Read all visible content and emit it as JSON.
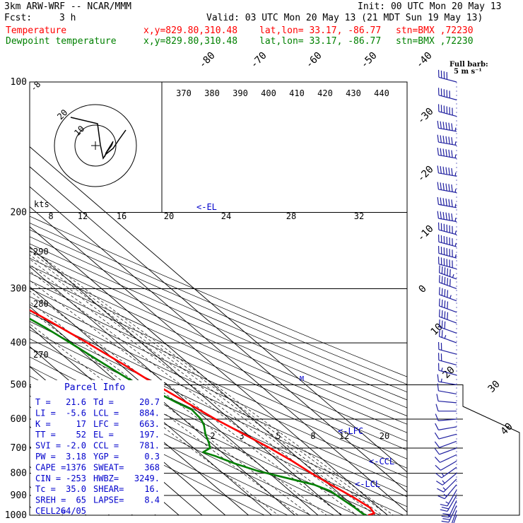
{
  "header": {
    "model": "3km ARW-WRF -- NCAR/MMM",
    "init": "Init: 00 UTC Mon 20 May 13",
    "fcst_label": "Fcst:",
    "fcst_value": "3 h",
    "valid": "Valid: 03 UTC Mon 20 May 13 (21 MDT Sun 19 May 13)",
    "rows": [
      {
        "name": "Temperature",
        "xy": "x,y=829.80,310.48",
        "latlon": "lat,lon= 33.17, -86.77",
        "stn": "stn=BMX ,72230",
        "color": "#ff0000"
      },
      {
        "name": "Dewpoint temperature",
        "xy": "x,y=829.80,310.48",
        "latlon": "lat,lon= 33.17, -86.77",
        "stn": "stn=BMX ,72230",
        "color": "#008000"
      }
    ]
  },
  "barb_legend": {
    "line1": "Full barb:",
    "line2": "5 m s⁻¹"
  },
  "parcel_info": {
    "title": "Parcel Info",
    "rows": [
      [
        "T  =",
        "21.6",
        "Td =",
        "20.7"
      ],
      [
        "LI =",
        "-5.6",
        "LCL =",
        "884."
      ],
      [
        "K  =",
        "17",
        "LFC =",
        "663."
      ],
      [
        "TT =",
        "52",
        "EL =",
        "197."
      ],
      [
        "SVI =",
        "-2.0",
        "CCL =",
        "781."
      ],
      [
        "PW =",
        "3.18",
        "YGP =",
        "0.3"
      ],
      [
        "CAPE =",
        "1376",
        "SWEAT=",
        "368"
      ],
      [
        "CIN =",
        "-253",
        "HWBZ=",
        "3249."
      ],
      [
        "Tc =",
        "35.0",
        "SHEAR=",
        "16."
      ],
      [
        "SREH =",
        "65",
        "LAPSE=",
        "8.4"
      ],
      [
        "CELL =",
        "264/05",
        "",
        ""
      ]
    ]
  },
  "hodograph": {
    "units_label": "kts",
    "ring_labels": [
      "20",
      "10"
    ]
  },
  "chart_data": {
    "type": "line",
    "title": "",
    "xlabel": "",
    "ylabel": "",
    "y_scale": "log pressure (reversed)",
    "ylim": [
      1000,
      100
    ],
    "pressure_ticks": [
      100,
      200,
      300,
      400,
      500,
      600,
      700,
      800,
      900,
      1000
    ],
    "isotherm_labels": [
      -80,
      -70,
      -60,
      -50,
      -40,
      -30,
      -20,
      -10,
      0,
      10,
      20,
      30,
      40
    ],
    "theta_labels": [
      370,
      380,
      390,
      400,
      410,
      420,
      430,
      440
    ],
    "mixing_ratio_labels_upper": [
      8,
      12,
      16,
      20,
      24,
      28,
      32
    ],
    "mixing_ratio_labels_lower": [
      2,
      3,
      5,
      8,
      12,
      20
    ],
    "theta_labels_left": [
      290,
      280,
      270
    ],
    "left_top_label": "-8",
    "level_markers": [
      "<-EL",
      "<-LFC",
      "<-CCL",
      "<-LCL"
    ],
    "series": [
      {
        "name": "Temperature",
        "color": "#ff0000",
        "points": [
          [
            1000,
            21.6
          ],
          [
            990,
            25.2
          ],
          [
            960,
            26.2
          ],
          [
            940,
            25.4
          ],
          [
            910,
            24.2
          ],
          [
            880,
            22.6
          ],
          [
            850,
            20.8
          ],
          [
            800,
            18.2
          ],
          [
            750,
            16.0
          ],
          [
            700,
            12.8
          ],
          [
            650,
            8.6
          ],
          [
            600,
            3.8
          ],
          [
            560,
            0.6
          ],
          [
            520,
            -2.8
          ],
          [
            500,
            -4.6
          ],
          [
            450,
            -8.4
          ],
          [
            400,
            -13.2
          ],
          [
            350,
            -19.6
          ],
          [
            300,
            -28.0
          ],
          [
            250,
            -38.0
          ],
          [
            210,
            -48.0
          ],
          [
            200,
            -51.0
          ],
          [
            190,
            -53.0
          ],
          [
            180,
            -55.0
          ],
          [
            170,
            -56.6
          ],
          [
            160,
            -59.0
          ],
          [
            150,
            -62.0
          ],
          [
            140,
            -64.6
          ],
          [
            130,
            -67.4
          ],
          [
            120,
            -69.2
          ],
          [
            110,
            -71.0
          ],
          [
            100,
            -72.2
          ]
        ]
      },
      {
        "name": "Dewpoint temperature",
        "color": "#008000",
        "points": [
          [
            1000,
            20.7
          ],
          [
            990,
            20.0
          ],
          [
            960,
            19.6
          ],
          [
            920,
            18.5
          ],
          [
            880,
            17.5
          ],
          [
            850,
            13.5
          ],
          [
            820,
            5.0
          ],
          [
            790,
            -4.0
          ],
          [
            760,
            -10.0
          ],
          [
            730,
            -14.8
          ],
          [
            715,
            -18.0
          ],
          [
            700,
            -13.0
          ],
          [
            680,
            -10.8
          ],
          [
            650,
            -8.0
          ],
          [
            620,
            -4.2
          ],
          [
            600,
            -2.4
          ],
          [
            570,
            -1.6
          ],
          [
            550,
            -4.5
          ],
          [
            520,
            -8.2
          ],
          [
            500,
            -12.4
          ],
          [
            450,
            -16.4
          ],
          [
            400,
            -20.6
          ],
          [
            370,
            -23.6
          ],
          [
            340,
            -27.8
          ],
          [
            300,
            -33.0
          ],
          [
            270,
            -38.0
          ],
          [
            240,
            -42.0
          ],
          [
            220,
            -47.0
          ],
          [
            200,
            -54.0
          ],
          [
            180,
            -63.0
          ],
          [
            165,
            -66.0
          ],
          [
            150,
            -64.0
          ],
          [
            130,
            -66.0
          ],
          [
            110,
            -70.0
          ],
          [
            100,
            -73.0
          ]
        ]
      }
    ],
    "wind_barbs": [
      {
        "p": 1000,
        "dir": 200,
        "spd": 3
      },
      {
        "p": 975,
        "dir": 200,
        "spd": 4
      },
      {
        "p": 950,
        "dir": 205,
        "spd": 5
      },
      {
        "p": 925,
        "dir": 205,
        "spd": 4
      },
      {
        "p": 900,
        "dir": 210,
        "spd": 4
      },
      {
        "p": 875,
        "dir": 210,
        "spd": 3
      },
      {
        "p": 850,
        "dir": 220,
        "spd": 3
      },
      {
        "p": 825,
        "dir": 225,
        "spd": 3
      },
      {
        "p": 800,
        "dir": 230,
        "spd": 3
      },
      {
        "p": 775,
        "dir": 235,
        "spd": 3
      },
      {
        "p": 750,
        "dir": 240,
        "spd": 2
      },
      {
        "p": 725,
        "dir": 245,
        "spd": 2
      },
      {
        "p": 700,
        "dir": 250,
        "spd": 2
      },
      {
        "p": 675,
        "dir": 250,
        "spd": 2
      },
      {
        "p": 650,
        "dir": 255,
        "spd": 2
      },
      {
        "p": 625,
        "dir": 260,
        "spd": 2
      },
      {
        "p": 600,
        "dir": 265,
        "spd": 2
      },
      {
        "p": 575,
        "dir": 270,
        "spd": 2
      },
      {
        "p": 550,
        "dir": 275,
        "spd": 2
      },
      {
        "p": 525,
        "dir": 280,
        "spd": 2
      },
      {
        "p": 500,
        "dir": 280,
        "spd": 3
      },
      {
        "p": 475,
        "dir": 285,
        "spd": 3
      },
      {
        "p": 450,
        "dir": 285,
        "spd": 4
      },
      {
        "p": 425,
        "dir": 285,
        "spd": 4
      },
      {
        "p": 400,
        "dir": 290,
        "spd": 5
      },
      {
        "p": 380,
        "dir": 290,
        "spd": 6
      },
      {
        "p": 360,
        "dir": 290,
        "spd": 8
      },
      {
        "p": 340,
        "dir": 290,
        "spd": 8
      },
      {
        "p": 320,
        "dir": 290,
        "spd": 9
      },
      {
        "p": 300,
        "dir": 290,
        "spd": 10
      },
      {
        "p": 285,
        "dir": 290,
        "spd": 11
      },
      {
        "p": 270,
        "dir": 285,
        "spd": 12
      },
      {
        "p": 255,
        "dir": 285,
        "spd": 14
      },
      {
        "p": 240,
        "dir": 285,
        "spd": 15
      },
      {
        "p": 225,
        "dir": 285,
        "spd": 16
      },
      {
        "p": 210,
        "dir": 280,
        "spd": 18
      },
      {
        "p": 195,
        "dir": 280,
        "spd": 18
      },
      {
        "p": 180,
        "dir": 280,
        "spd": 17
      },
      {
        "p": 165,
        "dir": 280,
        "spd": 16
      },
      {
        "p": 150,
        "dir": 280,
        "spd": 15
      },
      {
        "p": 140,
        "dir": 280,
        "spd": 14
      },
      {
        "p": 130,
        "dir": 280,
        "spd": 13
      },
      {
        "p": 120,
        "dir": 285,
        "spd": 12
      },
      {
        "p": 110,
        "dir": 285,
        "spd": 10
      },
      {
        "p": 100,
        "dir": 285,
        "spd": 8
      }
    ],
    "grid": true,
    "legend": "top-left"
  }
}
